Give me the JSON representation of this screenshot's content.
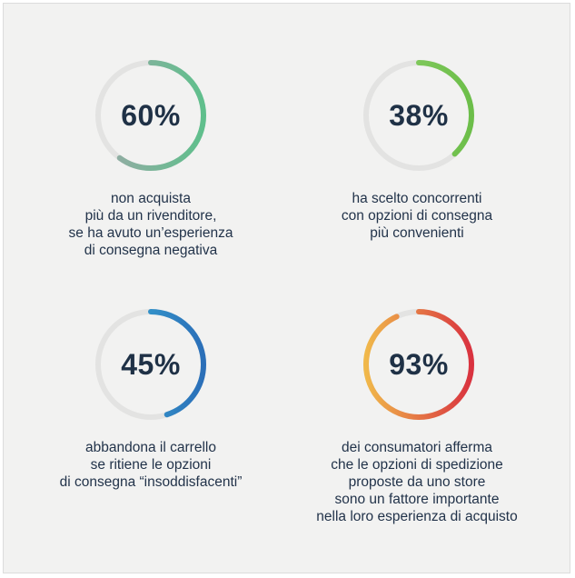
{
  "chart_data": [
    {
      "type": "donut",
      "value": 60,
      "label": "60%",
      "description": [
        "non acquista",
        "più da un rivenditore,",
        "se ha avuto un’esperienza",
        "di consegna negativa"
      ],
      "gradient": [
        "#9aaaa7",
        "#5fbf8c"
      ]
    },
    {
      "type": "donut",
      "value": 38,
      "label": "38%",
      "description": [
        "ha scelto concorrenti",
        "con opzioni di consegna",
        "più convenienti"
      ],
      "gradient": [
        "#8fd16a",
        "#6cbe49"
      ]
    },
    {
      "type": "donut",
      "value": 45,
      "label": "45%",
      "description": [
        "abbandona il carrello",
        "se ritiene le opzioni",
        "di consegna “insoddisfacenti”"
      ],
      "gradient": [
        "#3ab0d8",
        "#2b6fb8"
      ]
    },
    {
      "type": "donut",
      "value": 93,
      "label": "93%",
      "description": [
        "dei consumatori afferma",
        "che le opzioni di spedizione",
        "proposte da uno store",
        "sono un fattore importante",
        "nella loro esperienza di acquisto"
      ],
      "gradient": [
        "#f0b84a",
        "#d9323f"
      ]
    }
  ],
  "colors": {
    "track": "#e3e3e2",
    "background": "#f2f2f1",
    "text": "#1f3146"
  }
}
